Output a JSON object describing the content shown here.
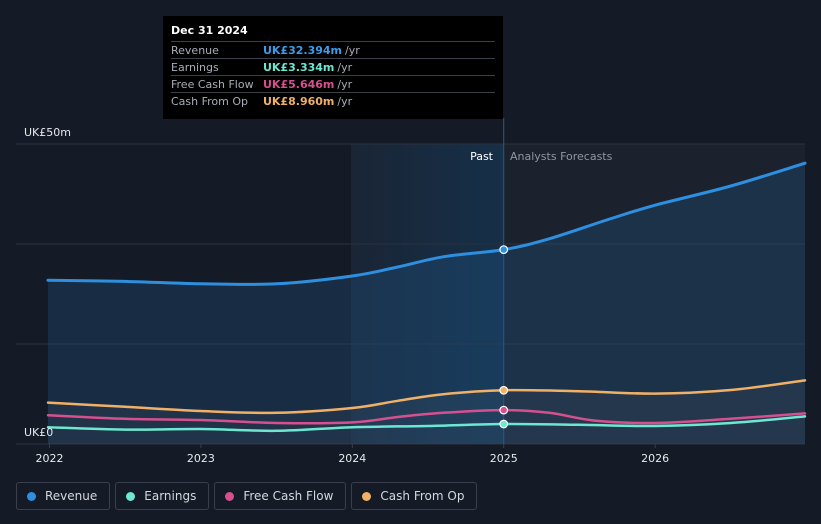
{
  "tooltip": {
    "date": "Dec 31 2024",
    "rows": [
      {
        "label": "Revenue",
        "value": "UK£32.394m",
        "unit": "/yr",
        "color": "#3d9be9"
      },
      {
        "label": "Earnings",
        "value": "UK£3.334m",
        "unit": "/yr",
        "color": "#6ee7d2"
      },
      {
        "label": "Free Cash Flow",
        "value": "UK£5.646m",
        "unit": "/yr",
        "color": "#d6508f"
      },
      {
        "label": "Cash From Op",
        "value": "UK£8.960m",
        "unit": "/yr",
        "color": "#f0b067"
      }
    ]
  },
  "legend": [
    {
      "label": "Revenue",
      "color": "#2e8fe0"
    },
    {
      "label": "Earnings",
      "color": "#6ee7d2"
    },
    {
      "label": "Free Cash Flow",
      "color": "#d6508f"
    },
    {
      "label": "Cash From Op",
      "color": "#f0b067"
    }
  ],
  "chart_data": {
    "type": "line",
    "title": "",
    "y_max_label": "UK£50m",
    "y_min_label": "UK£0",
    "ylim": [
      0,
      50
    ],
    "xlim": [
      2021.99,
      2026.99
    ],
    "past_label": "Past",
    "forecast_label": "Analysts Forecasts",
    "divider_x": 2025.0,
    "x_ticks": [
      {
        "value": 2022.0,
        "label": "2022"
      },
      {
        "value": 2023.0,
        "label": "2023"
      },
      {
        "value": 2024.0,
        "label": "2024"
      },
      {
        "value": 2025.0,
        "label": "2025"
      },
      {
        "value": 2026.0,
        "label": "2026"
      }
    ],
    "series": [
      {
        "name": "Revenue",
        "color": "#2e8fe0",
        "fill": true,
        "points": [
          [
            2021.99,
            27.3
          ],
          [
            2022.5,
            27.1
          ],
          [
            2023.0,
            26.7
          ],
          [
            2023.5,
            26.7
          ],
          [
            2024.0,
            28.0
          ],
          [
            2024.3,
            29.5
          ],
          [
            2024.6,
            31.2
          ],
          [
            2025.0,
            32.4
          ],
          [
            2025.3,
            34.2
          ],
          [
            2025.7,
            37.5
          ],
          [
            2026.0,
            39.8
          ],
          [
            2026.5,
            43.0
          ],
          [
            2026.99,
            46.8
          ]
        ]
      },
      {
        "name": "Earnings",
        "color": "#6ee7d2",
        "fill": false,
        "points": [
          [
            2021.99,
            2.8
          ],
          [
            2022.5,
            2.4
          ],
          [
            2023.0,
            2.5
          ],
          [
            2023.5,
            2.2
          ],
          [
            2024.0,
            2.8
          ],
          [
            2024.5,
            3.0
          ],
          [
            2025.0,
            3.33
          ],
          [
            2025.5,
            3.2
          ],
          [
            2026.0,
            3.0
          ],
          [
            2026.5,
            3.5
          ],
          [
            2026.99,
            4.6
          ]
        ]
      },
      {
        "name": "Free Cash Flow",
        "color": "#d6508f",
        "fill": false,
        "points": [
          [
            2021.99,
            4.8
          ],
          [
            2022.5,
            4.2
          ],
          [
            2023.0,
            4.0
          ],
          [
            2023.5,
            3.5
          ],
          [
            2024.0,
            3.6
          ],
          [
            2024.3,
            4.5
          ],
          [
            2024.6,
            5.2
          ],
          [
            2025.0,
            5.65
          ],
          [
            2025.3,
            5.2
          ],
          [
            2025.6,
            3.9
          ],
          [
            2026.0,
            3.5
          ],
          [
            2026.5,
            4.2
          ],
          [
            2026.99,
            5.1
          ]
        ]
      },
      {
        "name": "Cash From Op",
        "color": "#f0b067",
        "fill": true,
        "points": [
          [
            2021.99,
            6.9
          ],
          [
            2022.5,
            6.2
          ],
          [
            2023.0,
            5.5
          ],
          [
            2023.5,
            5.2
          ],
          [
            2024.0,
            6.0
          ],
          [
            2024.3,
            7.2
          ],
          [
            2024.6,
            8.3
          ],
          [
            2025.0,
            8.96
          ],
          [
            2025.5,
            8.8
          ],
          [
            2026.0,
            8.4
          ],
          [
            2026.5,
            9.0
          ],
          [
            2026.99,
            10.6
          ]
        ]
      }
    ],
    "markers_at": 2025.0
  }
}
